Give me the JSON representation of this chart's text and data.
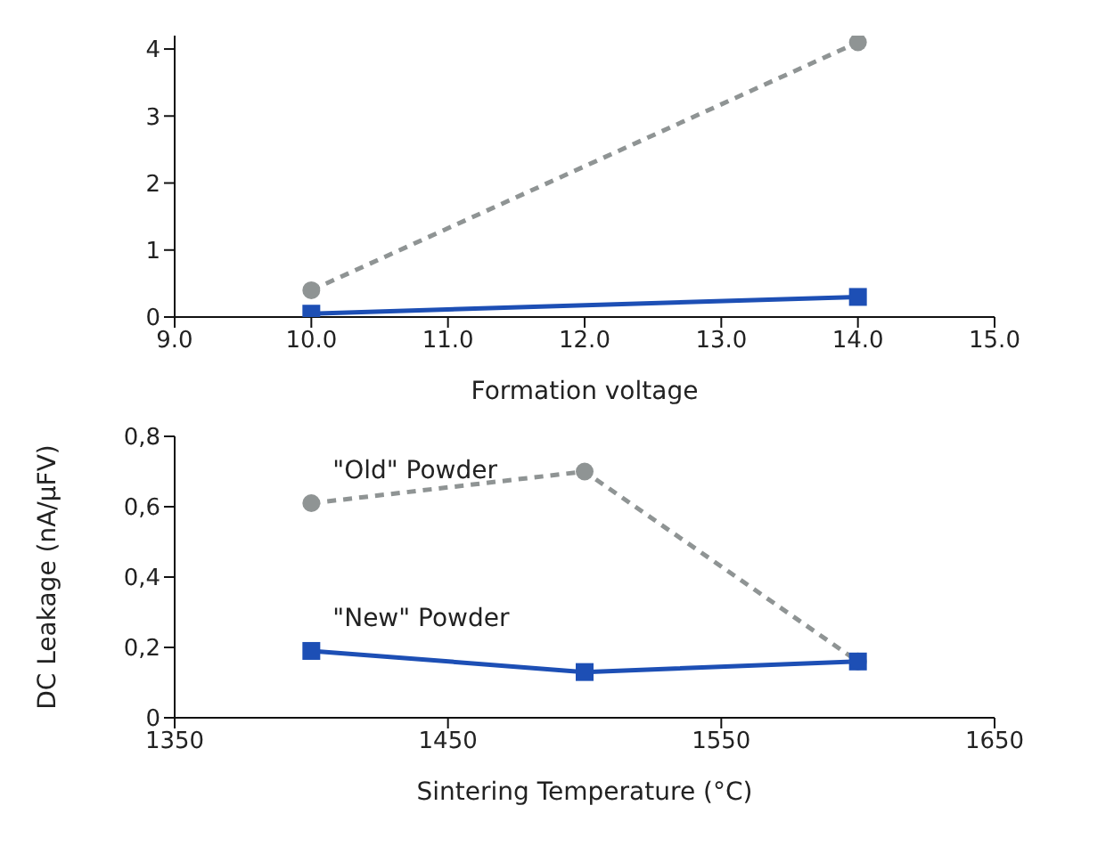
{
  "chart_data": [
    {
      "type": "line",
      "xlabel": "Formation voltage",
      "xlim": [
        9,
        15
      ],
      "xticks": [
        {
          "value": 9,
          "label": "9.0"
        },
        {
          "value": 10,
          "label": "10.0"
        },
        {
          "value": 11,
          "label": "11.0"
        },
        {
          "value": 12,
          "label": "12.0"
        },
        {
          "value": 13,
          "label": "13.0"
        },
        {
          "value": 14,
          "label": "14.0"
        },
        {
          "value": 15,
          "label": "15.0"
        }
      ],
      "ylim": [
        0,
        4.2
      ],
      "yticks": [
        0,
        1,
        2,
        3,
        4
      ],
      "grid": false,
      "legend": false,
      "series": [
        {
          "color": "#8f9494",
          "x": [
            10,
            14
          ],
          "values": [
            0.4,
            4.1
          ],
          "line_style": "dashed",
          "marker": "circle"
        },
        {
          "color": "#1d4fb5",
          "x": [
            10,
            14
          ],
          "values": [
            0.05,
            0.3
          ],
          "line_style": "solid",
          "marker": "square"
        }
      ]
    },
    {
      "type": "line",
      "xlabel": "Sintering Temperature (°C)",
      "ylabel": "DC Leakage (nA/µFV)",
      "xlim": [
        1350,
        1650
      ],
      "xticks": [
        1350,
        1450,
        1550,
        1650
      ],
      "ylim": [
        0,
        0.8
      ],
      "yticks": [
        0,
        {
          "value": 0.2,
          "label": "0,2"
        },
        {
          "value": 0.4,
          "label": "0,4"
        },
        {
          "value": 0.6,
          "label": "0,6"
        },
        {
          "value": 0.8,
          "label": "0,8"
        }
      ],
      "grid": false,
      "legend": false,
      "series": [
        {
          "name": "\"Old\" Powder",
          "color": "#8f9494",
          "x": [
            1400,
            1500,
            1600
          ],
          "values": [
            0.61,
            0.7,
            0.16
          ],
          "line_style": "dashed",
          "marker": "circle"
        },
        {
          "name": "\"New\" Powder",
          "color": "#1d4fb5",
          "x": [
            1400,
            1500,
            1600
          ],
          "values": [
            0.19,
            0.13,
            0.16
          ],
          "line_style": "solid",
          "marker": "square"
        }
      ]
    }
  ]
}
